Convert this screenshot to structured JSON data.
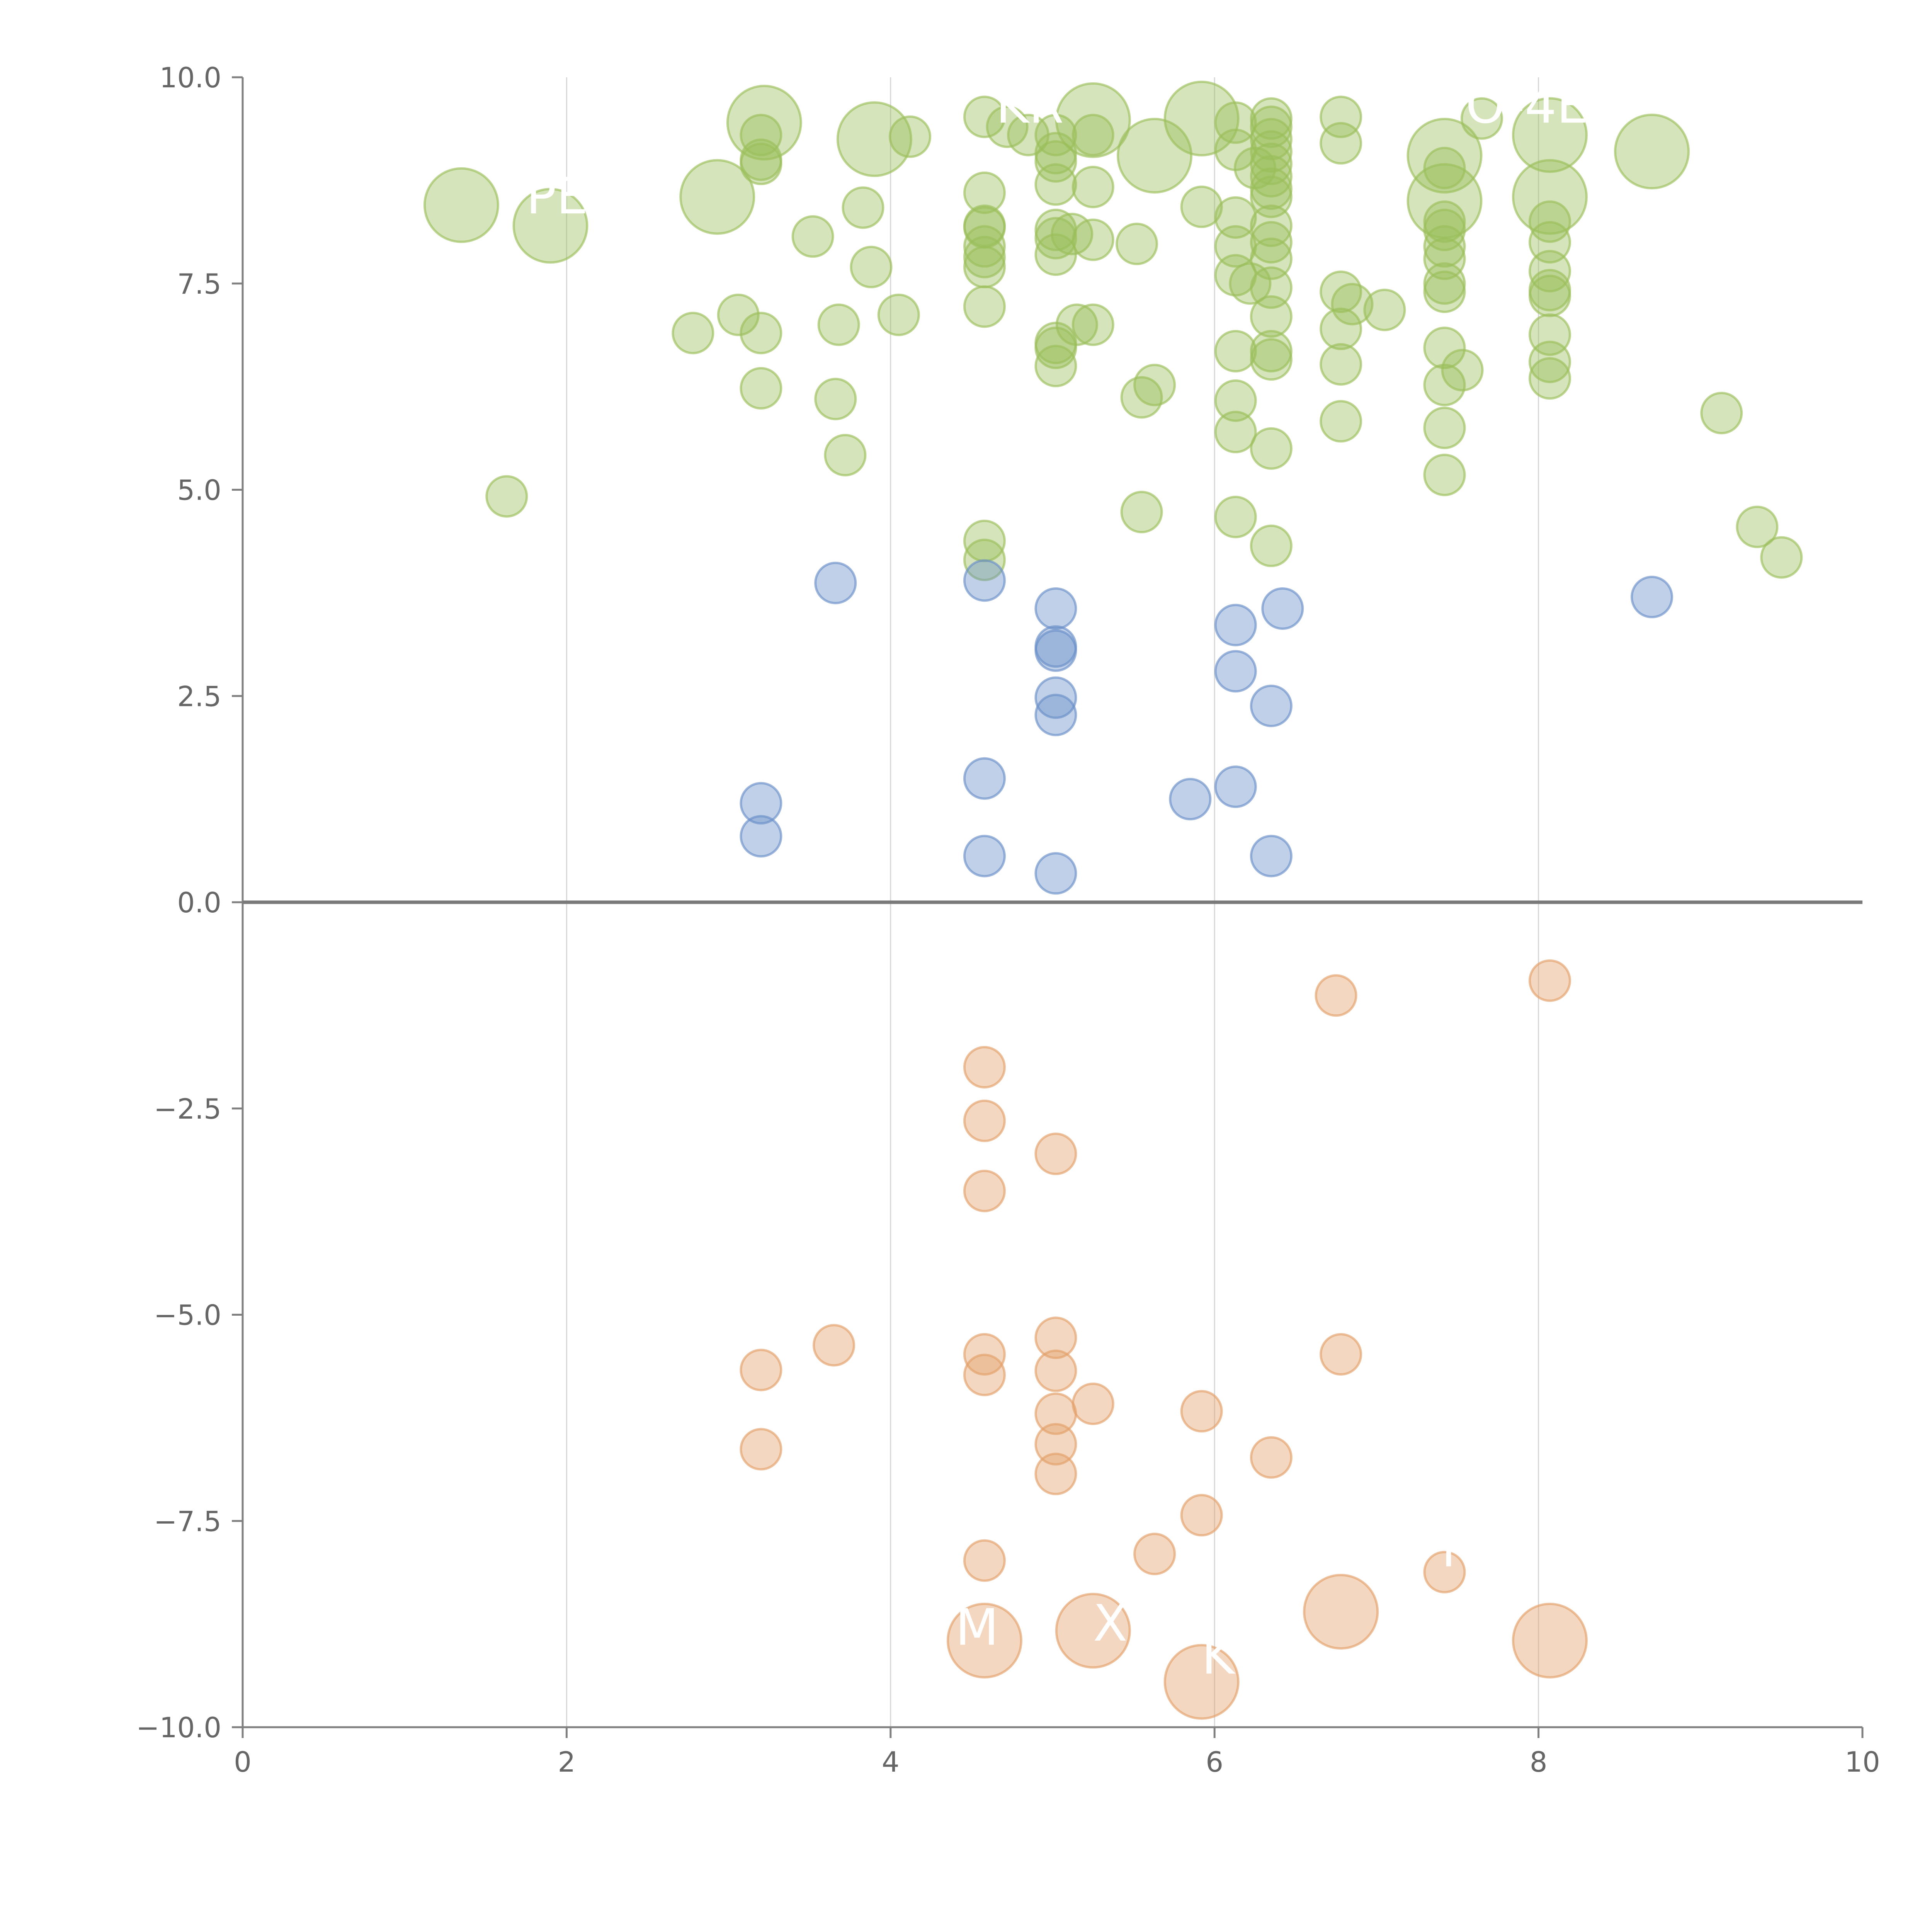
{
  "chart_data": {
    "type": "scatter",
    "title": "",
    "xlabel": "",
    "ylabel": "",
    "xlim": [
      0,
      10
    ],
    "ylim": [
      -10,
      10
    ],
    "x_ticks": [
      0,
      2,
      4,
      6,
      8,
      10
    ],
    "y_ticks": [
      -10,
      -7.5,
      -5,
      -2.5,
      0,
      2.5,
      5,
      7.5,
      10
    ],
    "x_tick_labels": [
      "0",
      "2",
      "4",
      "6",
      "8",
      "10"
    ],
    "y_tick_labels": [
      "−10.0",
      "−7.5",
      "−5.0",
      "−2.5",
      "0.0",
      "2.5",
      "5.0",
      "7.5",
      "10.0"
    ],
    "grid": {
      "vertical": true,
      "horizontal": false
    },
    "zero_line": true,
    "colors": {
      "high": "#9bbf5a",
      "mid": "#6a8fc7",
      "low": "#e3a06a"
    },
    "series": [
      {
        "color_key": "high",
        "points": [
          [
            1.35,
            8.45,
            "L"
          ],
          [
            1.9,
            8.2,
            "L"
          ],
          [
            1.63,
            4.92,
            "S"
          ],
          [
            2.78,
            6.9,
            "S"
          ],
          [
            2.93,
            8.55,
            "L"
          ],
          [
            3.06,
            7.12,
            "S"
          ],
          [
            3.2,
            9.3,
            "S"
          ],
          [
            3.2,
            9.0,
            "S"
          ],
          [
            3.2,
            8.95,
            "S"
          ],
          [
            3.2,
            6.9,
            "S"
          ],
          [
            3.2,
            6.23,
            "S"
          ],
          [
            3.22,
            9.45,
            "L"
          ],
          [
            3.52,
            8.07,
            "S"
          ],
          [
            3.66,
            6.1,
            "S"
          ],
          [
            3.68,
            7.0,
            "S"
          ],
          [
            3.72,
            5.42,
            "S"
          ],
          [
            3.83,
            8.42,
            "S"
          ],
          [
            3.88,
            7.7,
            "S"
          ],
          [
            3.9,
            9.25,
            "L"
          ],
          [
            4.05,
            7.12,
            "S"
          ],
          [
            4.12,
            9.28,
            "S"
          ],
          [
            4.58,
            9.52,
            "S"
          ],
          [
            4.58,
            8.6,
            "S"
          ],
          [
            4.58,
            8.2,
            "S"
          ],
          [
            4.58,
            8.18,
            "S"
          ],
          [
            4.58,
            7.95,
            "S"
          ],
          [
            4.58,
            7.82,
            "S"
          ],
          [
            4.58,
            7.7,
            "S"
          ],
          [
            4.58,
            7.22,
            "S"
          ],
          [
            4.58,
            4.38,
            "S"
          ],
          [
            4.58,
            4.15,
            "S"
          ],
          [
            4.72,
            9.4,
            "S"
          ],
          [
            4.85,
            9.3,
            "S"
          ],
          [
            5.02,
            9.3,
            "S"
          ],
          [
            5.02,
            9.08,
            "S"
          ],
          [
            5.02,
            8.98,
            "S"
          ],
          [
            5.02,
            8.7,
            "S"
          ],
          [
            5.02,
            8.15,
            "S"
          ],
          [
            5.02,
            8.05,
            "S"
          ],
          [
            5.02,
            7.85,
            "S"
          ],
          [
            5.02,
            6.78,
            "S"
          ],
          [
            5.02,
            6.72,
            "S"
          ],
          [
            5.02,
            6.5,
            "S"
          ],
          [
            5.12,
            8.1,
            "S"
          ],
          [
            5.15,
            7.0,
            "S"
          ],
          [
            5.25,
            9.48,
            "L"
          ],
          [
            5.25,
            9.3,
            "S"
          ],
          [
            5.25,
            8.67,
            "S"
          ],
          [
            5.25,
            8.03,
            "S"
          ],
          [
            5.25,
            7.0,
            "S"
          ],
          [
            5.52,
            7.98,
            "S"
          ],
          [
            5.55,
            6.12,
            "S"
          ],
          [
            5.55,
            4.73,
            "S"
          ],
          [
            5.63,
            9.05,
            "L"
          ],
          [
            5.63,
            6.27,
            "S"
          ],
          [
            5.92,
            9.5,
            "L"
          ],
          [
            5.92,
            8.43,
            "S"
          ],
          [
            6.13,
            9.45,
            "S"
          ],
          [
            6.13,
            9.12,
            "S"
          ],
          [
            6.13,
            8.3,
            "S"
          ],
          [
            6.13,
            7.95,
            "S"
          ],
          [
            6.13,
            7.6,
            "S"
          ],
          [
            6.13,
            6.68,
            "S"
          ],
          [
            6.13,
            6.08,
            "S"
          ],
          [
            6.13,
            5.7,
            "S"
          ],
          [
            6.13,
            4.67,
            "S"
          ],
          [
            6.22,
            7.5,
            "S"
          ],
          [
            6.25,
            8.9,
            "S"
          ],
          [
            6.35,
            9.5,
            "S"
          ],
          [
            6.35,
            9.4,
            "S"
          ],
          [
            6.35,
            9.25,
            "S"
          ],
          [
            6.35,
            9.1,
            "S"
          ],
          [
            6.35,
            8.95,
            "S"
          ],
          [
            6.35,
            8.8,
            "S"
          ],
          [
            6.35,
            8.65,
            "S"
          ],
          [
            6.35,
            8.55,
            "S"
          ],
          [
            6.35,
            8.2,
            "S"
          ],
          [
            6.35,
            8.0,
            "S"
          ],
          [
            6.35,
            7.8,
            "S"
          ],
          [
            6.35,
            7.45,
            "S"
          ],
          [
            6.35,
            7.1,
            "S"
          ],
          [
            6.35,
            6.68,
            "S"
          ],
          [
            6.35,
            6.58,
            "S"
          ],
          [
            6.35,
            5.5,
            "S"
          ],
          [
            6.35,
            4.32,
            "S"
          ],
          [
            6.78,
            9.52,
            "S"
          ],
          [
            6.78,
            9.2,
            "S"
          ],
          [
            6.78,
            7.4,
            "S"
          ],
          [
            6.78,
            6.95,
            "S"
          ],
          [
            6.78,
            6.52,
            "S"
          ],
          [
            6.78,
            5.83,
            "S"
          ],
          [
            6.85,
            7.25,
            "S"
          ],
          [
            7.05,
            7.18,
            "S"
          ],
          [
            7.42,
            9.05,
            "L"
          ],
          [
            7.42,
            8.5,
            "L"
          ],
          [
            7.42,
            8.9,
            "S"
          ],
          [
            7.42,
            8.25,
            "S"
          ],
          [
            7.42,
            8.15,
            "S"
          ],
          [
            7.42,
            7.95,
            "S"
          ],
          [
            7.42,
            7.8,
            "S"
          ],
          [
            7.42,
            7.5,
            "S"
          ],
          [
            7.42,
            7.4,
            "S"
          ],
          [
            7.42,
            6.72,
            "S"
          ],
          [
            7.42,
            6.27,
            "S"
          ],
          [
            7.42,
            5.75,
            "S"
          ],
          [
            7.42,
            5.18,
            "S"
          ],
          [
            7.53,
            6.45,
            "S"
          ],
          [
            7.65,
            9.5,
            "S"
          ],
          [
            8.07,
            9.3,
            "L"
          ],
          [
            8.07,
            8.55,
            "L"
          ],
          [
            8.07,
            8.25,
            "S"
          ],
          [
            8.07,
            8.0,
            "S"
          ],
          [
            8.07,
            7.65,
            "S"
          ],
          [
            8.07,
            7.42,
            "S"
          ],
          [
            8.07,
            7.35,
            "S"
          ],
          [
            8.07,
            6.88,
            "S"
          ],
          [
            8.07,
            6.55,
            "S"
          ],
          [
            8.07,
            6.35,
            "S"
          ],
          [
            8.7,
            9.1,
            "L"
          ],
          [
            9.13,
            5.93,
            "S"
          ],
          [
            9.35,
            4.55,
            "S"
          ],
          [
            9.5,
            4.18,
            "S"
          ]
        ]
      },
      {
        "color_key": "mid",
        "points": [
          [
            3.2,
            1.2,
            "S"
          ],
          [
            3.2,
            0.8,
            "S"
          ],
          [
            3.66,
            3.87,
            "S"
          ],
          [
            4.58,
            3.9,
            "S"
          ],
          [
            4.58,
            1.5,
            "S"
          ],
          [
            4.58,
            0.56,
            "S"
          ],
          [
            5.02,
            3.56,
            "S"
          ],
          [
            5.02,
            3.1,
            "S"
          ],
          [
            5.02,
            3.05,
            "S"
          ],
          [
            5.02,
            2.48,
            "S"
          ],
          [
            5.02,
            2.27,
            "S"
          ],
          [
            5.02,
            0.35,
            "S"
          ],
          [
            5.85,
            1.25,
            "S"
          ],
          [
            6.13,
            3.36,
            "S"
          ],
          [
            6.13,
            2.8,
            "S"
          ],
          [
            6.13,
            1.4,
            "S"
          ],
          [
            6.35,
            2.38,
            "S"
          ],
          [
            6.35,
            0.56,
            "S"
          ],
          [
            6.42,
            3.56,
            "S"
          ],
          [
            8.7,
            3.7,
            "S"
          ]
        ]
      },
      {
        "color_key": "low",
        "points": [
          [
            3.2,
            -5.67,
            "S"
          ],
          [
            3.2,
            -6.63,
            "S"
          ],
          [
            3.65,
            -5.37,
            "S"
          ],
          [
            4.58,
            -2.0,
            "S"
          ],
          [
            4.58,
            -2.65,
            "S"
          ],
          [
            4.58,
            -3.5,
            "S"
          ],
          [
            4.58,
            -5.48,
            "S"
          ],
          [
            4.58,
            -5.73,
            "S"
          ],
          [
            4.58,
            -7.98,
            "S"
          ],
          [
            4.58,
            -8.95,
            "L"
          ],
          [
            5.02,
            -3.05,
            "S"
          ],
          [
            5.02,
            -5.28,
            "S"
          ],
          [
            5.02,
            -5.68,
            "S"
          ],
          [
            5.02,
            -6.2,
            "S"
          ],
          [
            5.02,
            -6.57,
            "S"
          ],
          [
            5.02,
            -6.93,
            "S"
          ],
          [
            5.25,
            -6.08,
            "S"
          ],
          [
            5.25,
            -8.83,
            "L"
          ],
          [
            5.63,
            -7.9,
            "S"
          ],
          [
            5.92,
            -6.17,
            "S"
          ],
          [
            5.92,
            -7.43,
            "S"
          ],
          [
            5.92,
            -9.45,
            "L"
          ],
          [
            6.35,
            -6.73,
            "S"
          ],
          [
            6.75,
            -1.13,
            "S"
          ],
          [
            6.78,
            -5.48,
            "S"
          ],
          [
            6.78,
            -8.6,
            "L"
          ],
          [
            7.42,
            -8.12,
            "S"
          ],
          [
            8.07,
            -0.95,
            "S"
          ],
          [
            8.07,
            -8.95,
            "L"
          ]
        ]
      }
    ],
    "labels": [
      {
        "text": "PER",
        "x": 1.75,
        "y": 8.35
      },
      {
        "text": "KR",
        "x": 4.65,
        "y": 9.45
      },
      {
        "text": "O-4E",
        "x": 7.55,
        "y": 9.45
      },
      {
        "text": "N",
        "x": 7.4,
        "y": -8.05
      },
      {
        "text": "XS",
        "x": 5.25,
        "y": -8.95
      },
      {
        "text": "M",
        "x": 4.4,
        "y": -9.0
      },
      {
        "text": "KTZ",
        "x": 5.92,
        "y": -9.35
      }
    ]
  }
}
